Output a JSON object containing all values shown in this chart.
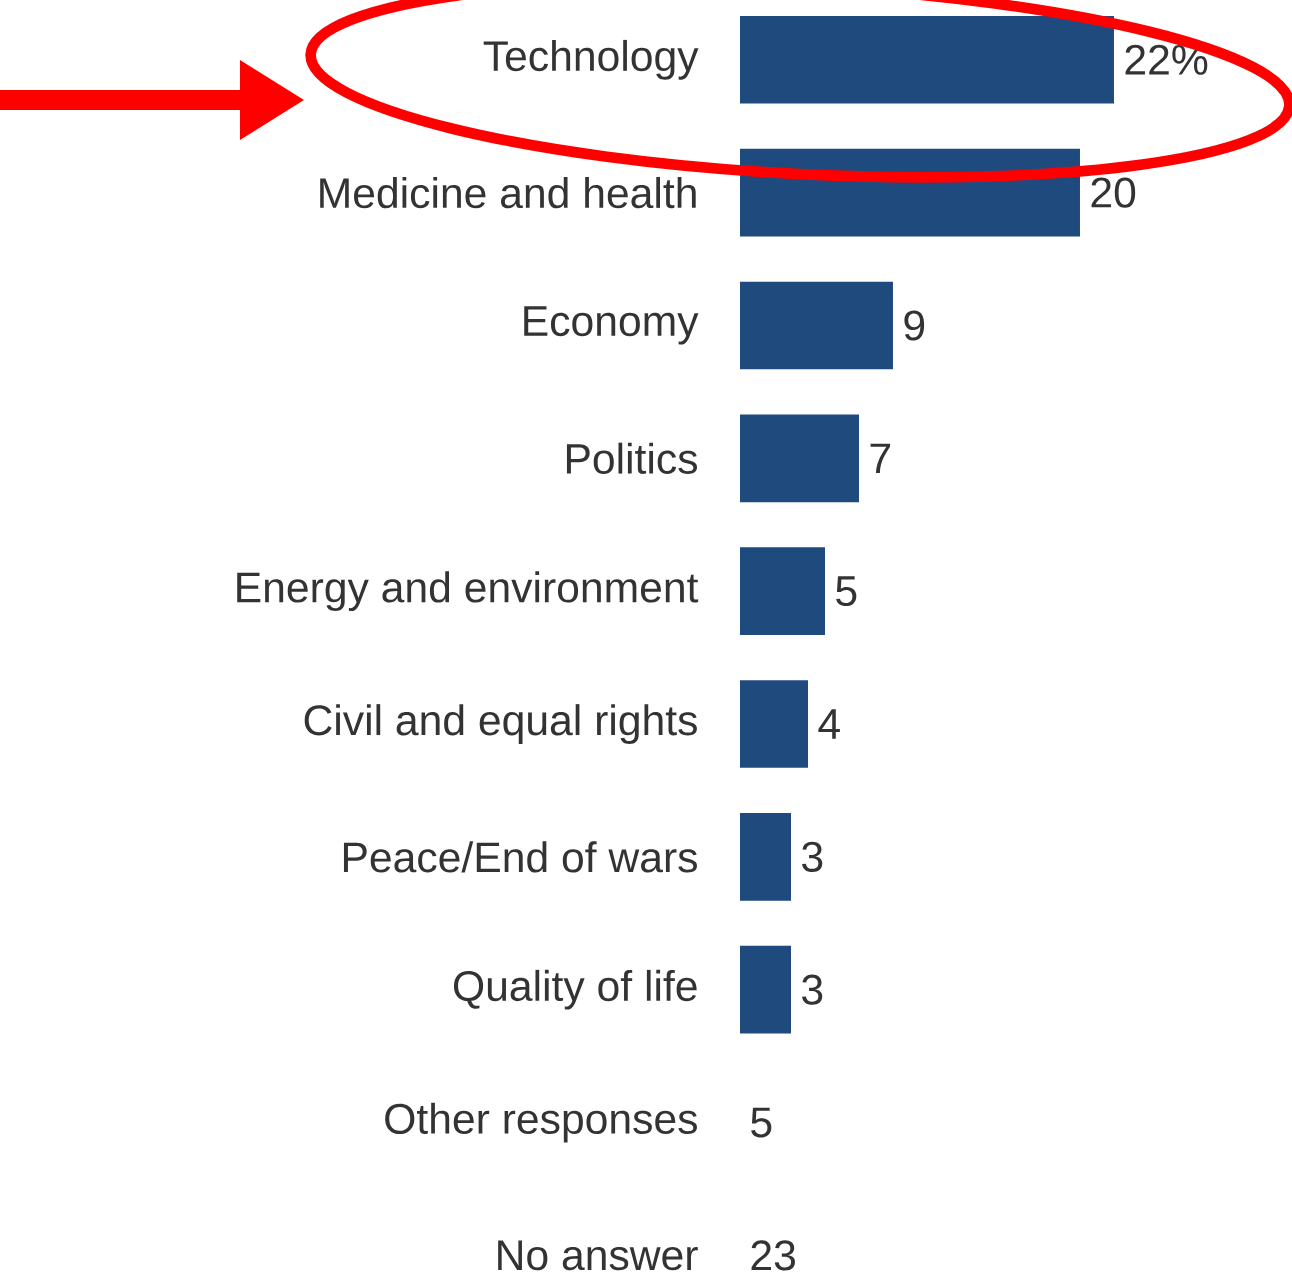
{
  "chart_data": {
    "type": "bar",
    "orientation": "horizontal",
    "color": "#1f4a7e",
    "categories": [
      "Technology",
      "Medicine and health",
      "Economy",
      "Politics",
      "Energy and environment",
      "Civil and equal rights",
      "Peace/End of wars",
      "Quality of life",
      "Other responses",
      "No answer"
    ],
    "values": [
      22,
      20,
      9,
      7,
      5,
      4,
      3,
      3,
      null,
      null
    ],
    "value_labels": [
      "22%",
      "20",
      "9",
      "7",
      "5",
      "4",
      "3",
      "3",
      "5",
      "23"
    ]
  }
}
